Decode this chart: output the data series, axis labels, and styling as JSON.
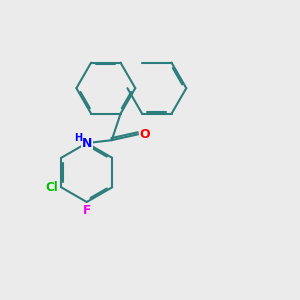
{
  "background_color": "#ebebeb",
  "bond_color": "#2d7d7d",
  "bond_width": 1.5,
  "atom_colors": {
    "N": "#0000ff",
    "O": "#ff0000",
    "Cl": "#00bb00",
    "F": "#ee00ee"
  },
  "font_size": 9
}
